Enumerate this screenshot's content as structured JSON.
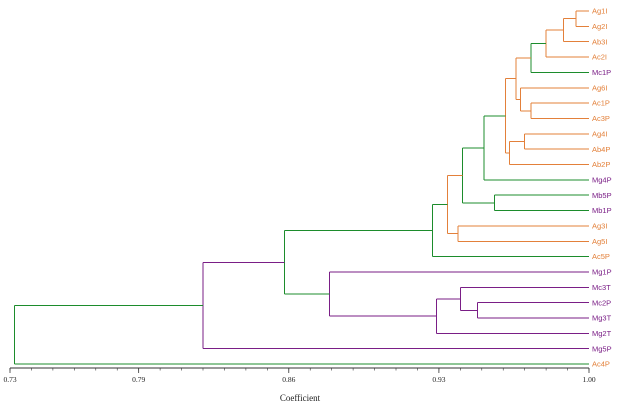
{
  "colors": {
    "orange": "#e3803a",
    "green": "#1c8c2c",
    "purple": "#7a1e86",
    "axis": "#333333"
  },
  "chart_data": {
    "type": "dendrogram",
    "xlabel": "Coefficient",
    "xlim": [
      0.73,
      1.0
    ],
    "ticks": [
      "0.73",
      "0.79",
      "0.86",
      "0.93",
      "1.00"
    ],
    "tick_values": [
      0.73,
      0.79,
      0.86,
      0.93,
      1.0
    ],
    "leaves": [
      {
        "label": "Ag1I",
        "color": "orange"
      },
      {
        "label": "Ag2I",
        "color": "orange"
      },
      {
        "label": "Ab3I",
        "color": "orange"
      },
      {
        "label": "Ac2I",
        "color": "orange"
      },
      {
        "label": "Mc1P",
        "color": "purple"
      },
      {
        "label": "Ag6I",
        "color": "orange"
      },
      {
        "label": "Ac1P",
        "color": "orange"
      },
      {
        "label": "Ac3P",
        "color": "orange"
      },
      {
        "label": "Ag4I",
        "color": "orange"
      },
      {
        "label": "Ab4P",
        "color": "orange"
      },
      {
        "label": "Ab2P",
        "color": "orange"
      },
      {
        "label": "Mg4P",
        "color": "purple"
      },
      {
        "label": "Mb5P",
        "color": "purple"
      },
      {
        "label": "Mb1P",
        "color": "purple"
      },
      {
        "label": "Ag3I",
        "color": "orange"
      },
      {
        "label": "Ag5I",
        "color": "orange"
      },
      {
        "label": "Ac5P",
        "color": "orange"
      },
      {
        "label": "Mg1P",
        "color": "purple"
      },
      {
        "label": "Mc3T",
        "color": "purple"
      },
      {
        "label": "Mc2P",
        "color": "purple"
      },
      {
        "label": "Mg3T",
        "color": "purple"
      },
      {
        "label": "Mg2T",
        "color": "purple"
      },
      {
        "label": "Mg5P",
        "color": "purple"
      },
      {
        "label": "Ac4P",
        "color": "orange"
      }
    ],
    "merges": [
      {
        "a": 0,
        "b": 1,
        "height": 0.994,
        "color": "orange"
      },
      {
        "a": 24,
        "b": 2,
        "height": 0.988,
        "color": "orange"
      },
      {
        "a": 25,
        "b": 3,
        "height": 0.98,
        "color": "orange"
      },
      {
        "a": 26,
        "b": 4,
        "height": 0.973,
        "color": "green"
      },
      {
        "a": 6,
        "b": 7,
        "height": 0.973,
        "color": "orange"
      },
      {
        "a": 5,
        "b": 28,
        "height": 0.968,
        "color": "orange"
      },
      {
        "a": 27,
        "b": 29,
        "height": 0.966,
        "color": "orange"
      },
      {
        "a": 8,
        "b": 9,
        "height": 0.97,
        "color": "orange"
      },
      {
        "a": 31,
        "b": 10,
        "height": 0.963,
        "color": "orange"
      },
      {
        "a": 30,
        "b": 32,
        "height": 0.961,
        "color": "orange"
      },
      {
        "a": 33,
        "b": 11,
        "height": 0.951,
        "color": "green"
      },
      {
        "a": 12,
        "b": 13,
        "height": 0.956,
        "color": "green"
      },
      {
        "a": 34,
        "b": 35,
        "height": 0.941,
        "color": "green"
      },
      {
        "a": 14,
        "b": 15,
        "height": 0.939,
        "color": "orange"
      },
      {
        "a": 36,
        "b": 37,
        "height": 0.934,
        "color": "orange"
      },
      {
        "a": 38,
        "b": 16,
        "height": 0.927,
        "color": "green"
      },
      {
        "a": 19,
        "b": 20,
        "height": 0.948,
        "color": "purple"
      },
      {
        "a": 18,
        "b": 40,
        "height": 0.94,
        "color": "purple"
      },
      {
        "a": 41,
        "b": 21,
        "height": 0.929,
        "color": "purple"
      },
      {
        "a": 17,
        "b": 42,
        "height": 0.879,
        "color": "purple"
      },
      {
        "a": 39,
        "b": 43,
        "height": 0.858,
        "color": "green"
      },
      {
        "a": 44,
        "b": 22,
        "height": 0.82,
        "color": "purple"
      },
      {
        "a": 45,
        "b": 23,
        "height": 0.732,
        "color": "green"
      }
    ]
  }
}
